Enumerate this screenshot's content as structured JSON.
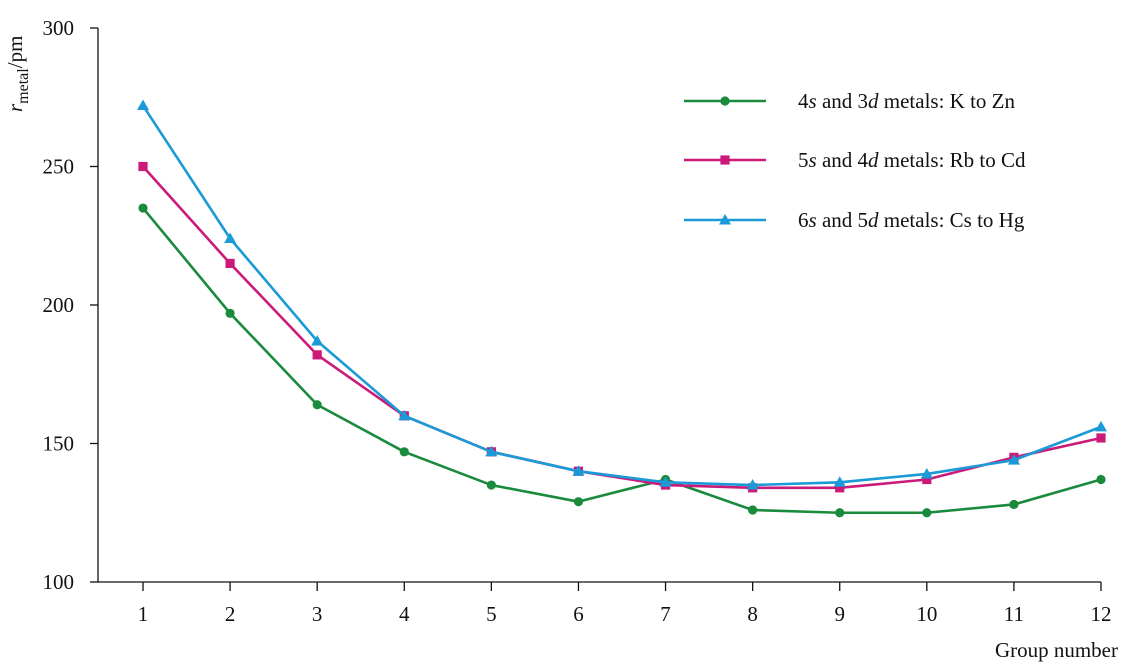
{
  "chart_data": {
    "type": "line",
    "title": "",
    "xlabel": "Group number",
    "ylabel": {
      "symbol": "r",
      "subscript": "metal",
      "unit": "/pm"
    },
    "x": [
      1,
      2,
      3,
      4,
      5,
      6,
      7,
      8,
      9,
      10,
      11,
      12
    ],
    "x_tick_labels": [
      "1",
      "2",
      "3",
      "4",
      "5",
      "6",
      "7",
      "8",
      "9",
      "10",
      "11",
      "12"
    ],
    "xlim": [
      0.5,
      12
    ],
    "ylim": [
      100,
      300
    ],
    "y_ticks": [
      100,
      150,
      200,
      250,
      300
    ],
    "y_tick_labels": [
      "100",
      "150",
      "200",
      "250",
      "300"
    ],
    "grid": false,
    "legend_position": "top-right",
    "series": [
      {
        "name": "4s and 3d metals: K to Zn",
        "legend_parts": [
          {
            "text": "4",
            "italic": false
          },
          {
            "text": "s",
            "italic": true
          },
          {
            "text": " and 3",
            "italic": false
          },
          {
            "text": "d",
            "italic": true
          },
          {
            "text": " metals: K to Zn",
            "italic": false
          }
        ],
        "color": "#1a8a3c",
        "marker": "circle",
        "values": [
          235,
          197,
          164,
          147,
          135,
          129,
          137,
          126,
          125,
          125,
          128,
          137
        ]
      },
      {
        "name": "5s and 4d metals: Rb to Cd",
        "legend_parts": [
          {
            "text": "5",
            "italic": false
          },
          {
            "text": "s",
            "italic": true
          },
          {
            "text": " and 4",
            "italic": false
          },
          {
            "text": "d",
            "italic": true
          },
          {
            "text": " metals: Rb to Cd",
            "italic": false
          }
        ],
        "color": "#cc1a7a",
        "marker": "square",
        "values": [
          250,
          215,
          182,
          160,
          147,
          140,
          135,
          134,
          134,
          137,
          145,
          152
        ]
      },
      {
        "name": "6s and 5d metals: Cs to Hg",
        "legend_parts": [
          {
            "text": "6",
            "italic": false
          },
          {
            "text": "s",
            "italic": true
          },
          {
            "text": " and 5",
            "italic": false
          },
          {
            "text": "d",
            "italic": true
          },
          {
            "text": " metals: Cs to Hg",
            "italic": false
          }
        ],
        "color": "#1a9ad6",
        "marker": "triangle",
        "values": [
          272,
          224,
          187,
          160,
          147,
          140,
          136,
          135,
          136,
          139,
          144,
          156
        ]
      }
    ]
  }
}
